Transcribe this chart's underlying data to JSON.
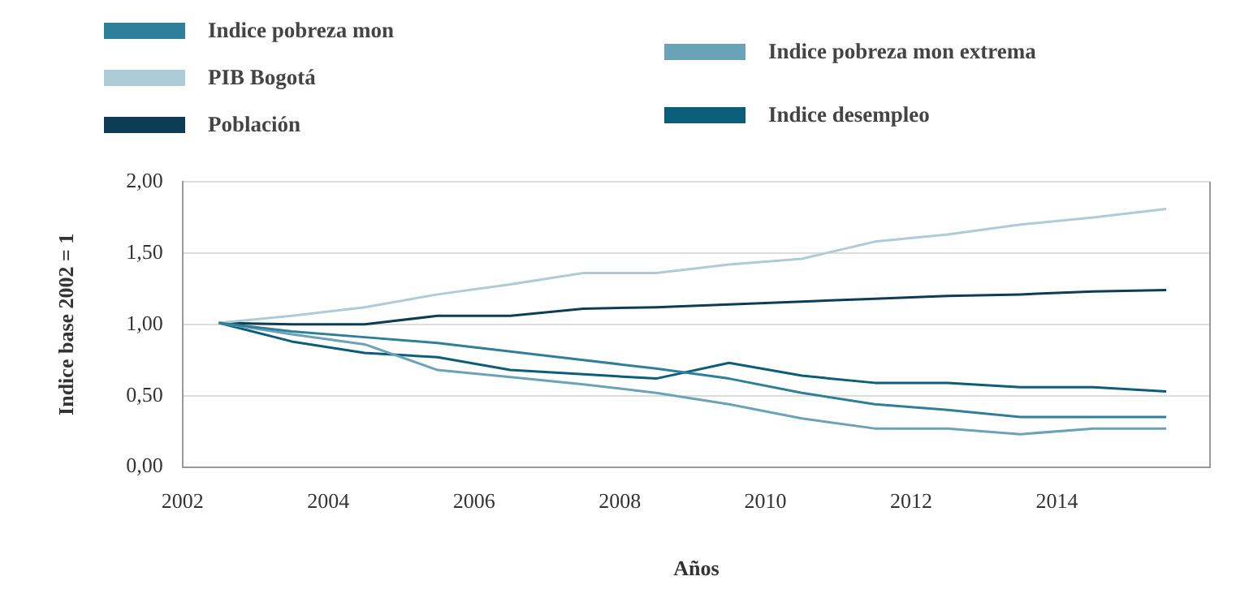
{
  "chart_data": {
    "type": "line",
    "xlabel": "Años",
    "ylabel": "Indice base 2002 = 1",
    "x": [
      2002.5,
      2003.5,
      2004.5,
      2005.5,
      2006.5,
      2007.5,
      2008.5,
      2009.5,
      2010.5,
      2011.5,
      2012.5,
      2013.5,
      2014.5,
      2015.5
    ],
    "series": [
      {
        "name": "Indice pobreza mon",
        "color": "#2e7f99",
        "values": [
          1.01,
          0.95,
          0.91,
          0.87,
          0.81,
          0.75,
          0.69,
          0.62,
          0.52,
          0.44,
          0.4,
          0.35,
          0.35,
          0.35
        ]
      },
      {
        "name": "PIB Bogotá",
        "color": "#aecbd8",
        "values": [
          1.01,
          1.06,
          1.12,
          1.21,
          1.28,
          1.36,
          1.36,
          1.42,
          1.46,
          1.58,
          1.63,
          1.7,
          1.75,
          1.81
        ]
      },
      {
        "name": "Población",
        "color": "#0d3d55",
        "values": [
          1.01,
          1.0,
          1.0,
          1.06,
          1.06,
          1.11,
          1.12,
          1.14,
          1.16,
          1.18,
          1.2,
          1.21,
          1.23,
          1.24
        ]
      },
      {
        "name": "Indice pobreza mon extrema",
        "color": "#6aa3b8",
        "values": [
          1.01,
          0.93,
          0.86,
          0.68,
          0.63,
          0.58,
          0.52,
          0.44,
          0.34,
          0.27,
          0.27,
          0.23,
          0.27,
          0.27
        ]
      },
      {
        "name": "Indice desempleo",
        "color": "#0b5e7a",
        "values": [
          1.01,
          0.88,
          0.8,
          0.77,
          0.68,
          0.65,
          0.62,
          0.73,
          0.64,
          0.59,
          0.59,
          0.56,
          0.56,
          0.53
        ]
      }
    ],
    "xlim": [
      2002,
      2016.1
    ],
    "xticks": [
      2002,
      2004,
      2006,
      2008,
      2010,
      2012,
      2014
    ],
    "ylim": [
      0,
      2
    ],
    "yticks": [
      {
        "value": 0,
        "label": "0,00"
      },
      {
        "value": 0.5,
        "label": "0,50"
      },
      {
        "value": 1,
        "label": "1,00"
      },
      {
        "value": 1.5,
        "label": "1,50"
      },
      {
        "value": 2,
        "label": "2,00"
      }
    ],
    "grid": "y",
    "legend": "top",
    "marker": "none",
    "line_style": "solid"
  }
}
